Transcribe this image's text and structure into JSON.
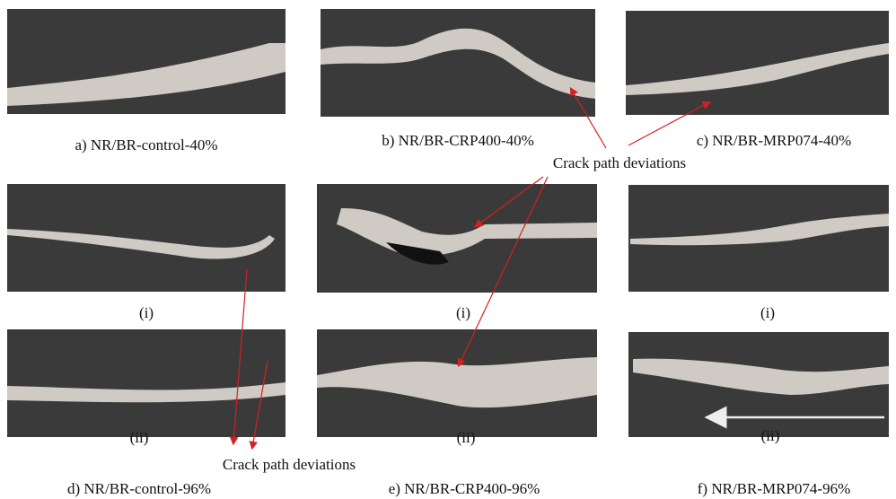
{
  "top_captions": [
    "a) NR/BR-control-40%",
    "b) NR/BR-CRP400-40%",
    "c) NR/BR-MRP074-40%"
  ],
  "annotation_top": "Crack path deviations",
  "middle_labels": [
    "(i)",
    "(i)",
    "(i)"
  ],
  "bottom_labels": [
    "(ii)",
    "(ii)",
    "(ii)"
  ],
  "annotation_bottom": "Crack path deviations",
  "bottom_captions": [
    "d) NR/BR-control-96%",
    "e) NR/BR-CRP400-96%",
    "f) NR/BR-MRP074-96%"
  ]
}
